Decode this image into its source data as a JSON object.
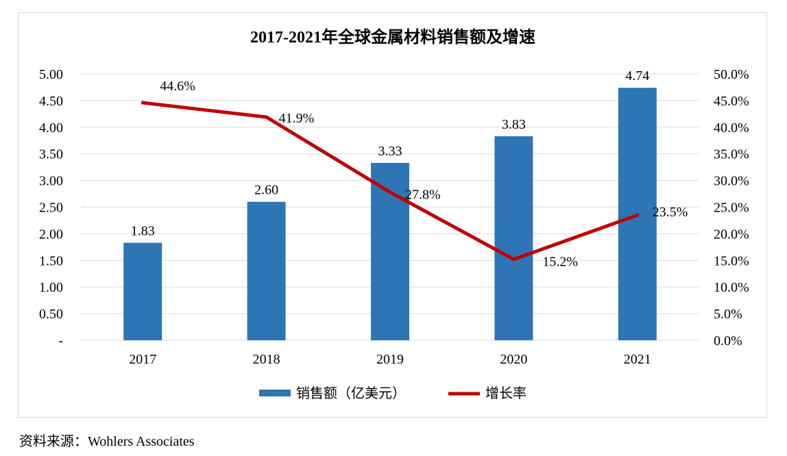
{
  "source_text": "资料来源：Wohlers Associates",
  "chart_data": {
    "type": "bar+line",
    "title": "2017-2021年全球金属材料销售额及增速",
    "categories": [
      "2017",
      "2018",
      "2019",
      "2020",
      "2021"
    ],
    "series": [
      {
        "name": "销售额（亿美元）",
        "type": "bar",
        "axis": "left",
        "color": "#2e75b6",
        "values": [
          1.83,
          2.6,
          3.33,
          3.83,
          4.74
        ],
        "labels": [
          "1.83",
          "2.60",
          "3.33",
          "3.83",
          "4.74"
        ]
      },
      {
        "name": "增长率",
        "type": "line",
        "axis": "right",
        "color": "#c00000",
        "values": [
          44.6,
          41.9,
          27.8,
          15.2,
          23.5
        ],
        "labels": [
          "44.6%",
          "41.9%",
          "27.8%",
          "15.2%",
          "23.5%"
        ]
      }
    ],
    "left_axis": {
      "ylim": [
        0,
        5
      ],
      "ticks": [
        "-",
        "0.50",
        "1.00",
        "1.50",
        "2.00",
        "2.50",
        "3.00",
        "3.50",
        "4.00",
        "4.50",
        "5.00"
      ]
    },
    "right_axis": {
      "ylim": [
        0,
        50
      ],
      "ticks": [
        "0.0%",
        "5.0%",
        "10.0%",
        "15.0%",
        "20.0%",
        "25.0%",
        "30.0%",
        "35.0%",
        "40.0%",
        "45.0%",
        "50.0%"
      ]
    },
    "grid": true,
    "legend_position": "bottom"
  }
}
